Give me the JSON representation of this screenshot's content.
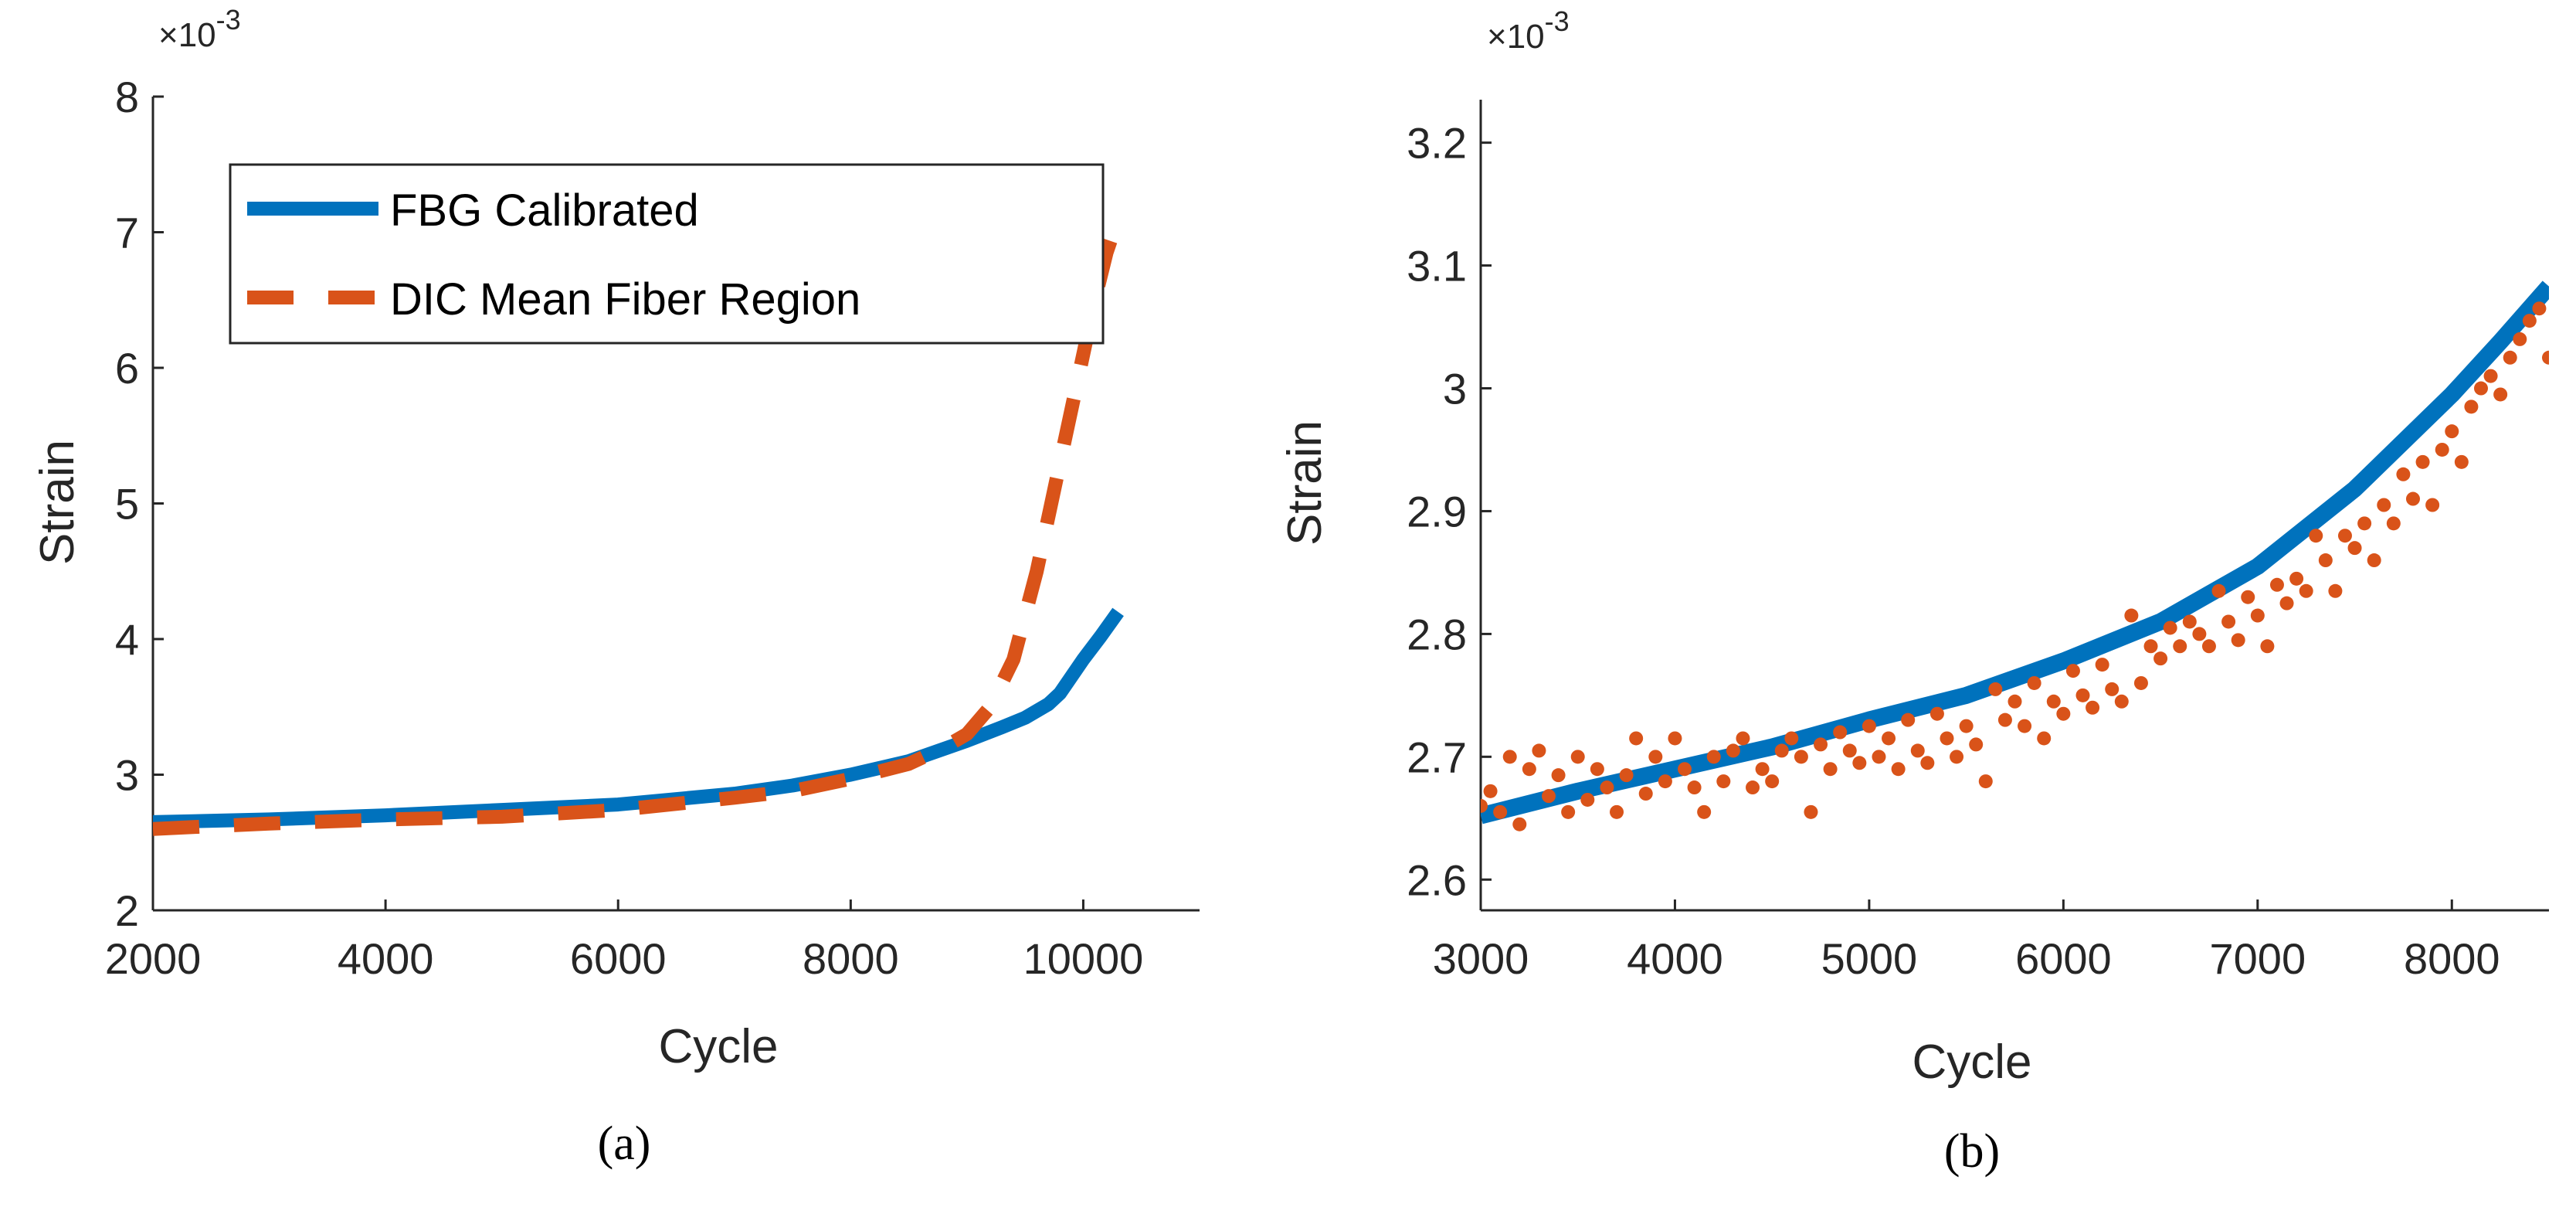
{
  "chart_data": [
    {
      "type": "line",
      "caption": "(a)",
      "xlabel": "Cycle",
      "ylabel": "Strain",
      "y_multiplier": "×10",
      "y_exponent": "-3",
      "xlim": [
        2000,
        11000
      ],
      "ylim": [
        2,
        8
      ],
      "xticks": [
        2000,
        4000,
        6000,
        8000,
        10000
      ],
      "yticks": [
        2,
        3,
        4,
        5,
        6,
        7,
        8
      ],
      "xtick_labels": [
        "2000",
        "4000",
        "6000",
        "8000",
        "10000"
      ],
      "ytick_labels": [
        "2",
        "3",
        "4",
        "5",
        "6",
        "7",
        "8"
      ],
      "legend": {
        "placement": "top-left",
        "entries": [
          "FBG Calibrated",
          "DIC Mean Fiber Region"
        ]
      },
      "series": [
        {
          "name": "FBG Calibrated",
          "style": "solid",
          "color": "#0072BD",
          "x": [
            2000,
            3000,
            4000,
            5000,
            6000,
            7000,
            7500,
            8000,
            8500,
            9000,
            9300,
            9500,
            9700,
            9800,
            10000,
            10150,
            10300
          ],
          "y": [
            2.65,
            2.67,
            2.7,
            2.74,
            2.78,
            2.86,
            2.92,
            3.0,
            3.1,
            3.25,
            3.35,
            3.42,
            3.52,
            3.6,
            3.85,
            4.02,
            4.2
          ]
        },
        {
          "name": "DIC Mean Fiber Region",
          "style": "dashed",
          "color": "#D95319",
          "x": [
            2000,
            3000,
            4000,
            5000,
            6000,
            7000,
            7500,
            8000,
            8500,
            8800,
            9000,
            9200,
            9400,
            9600,
            9800,
            9950,
            10100,
            10200,
            10300
          ],
          "y": [
            2.6,
            2.64,
            2.67,
            2.69,
            2.74,
            2.83,
            2.88,
            2.97,
            3.08,
            3.2,
            3.3,
            3.5,
            3.85,
            4.5,
            5.3,
            5.9,
            6.5,
            6.85,
            7.1
          ]
        }
      ]
    },
    {
      "type": "scatter",
      "caption": "(b)",
      "xlabel": "Cycle",
      "ylabel": "Strain",
      "y_multiplier": "×10",
      "y_exponent": "-3",
      "xlim": [
        3000,
        8500
      ],
      "ylim": [
        2.575,
        3.235
      ],
      "xticks": [
        3000,
        4000,
        5000,
        6000,
        7000,
        8000
      ],
      "yticks": [
        2.6,
        2.7,
        2.8,
        2.9,
        3.0,
        3.1,
        3.2
      ],
      "xtick_labels": [
        "3000",
        "4000",
        "5000",
        "6000",
        "7000",
        "8000"
      ],
      "ytick_labels": [
        "2.6",
        "2.7",
        "2.8",
        "2.9",
        "3",
        "3.1",
        "3.2"
      ],
      "series": [
        {
          "name": "FBG Calibrated",
          "style": "solid",
          "color": "#0072BD",
          "x": [
            3000,
            3500,
            4000,
            4500,
            5000,
            5500,
            6000,
            6500,
            7000,
            7500,
            8000,
            8250,
            8500
          ],
          "y": [
            2.652,
            2.672,
            2.69,
            2.708,
            2.73,
            2.75,
            2.778,
            2.81,
            2.855,
            2.918,
            2.995,
            3.038,
            3.083
          ]
        },
        {
          "name": "DIC Mean Fiber Region",
          "style": "markers",
          "color": "#D95319",
          "x": [
            3000,
            3050,
            3100,
            3150,
            3200,
            3250,
            3300,
            3350,
            3400,
            3450,
            3500,
            3550,
            3600,
            3650,
            3700,
            3750,
            3800,
            3850,
            3900,
            3950,
            4000,
            4050,
            4100,
            4150,
            4200,
            4250,
            4300,
            4350,
            4400,
            4450,
            4500,
            4550,
            4600,
            4650,
            4700,
            4750,
            4800,
            4850,
            4900,
            4950,
            5000,
            5050,
            5100,
            5150,
            5200,
            5250,
            5300,
            5350,
            5400,
            5450,
            5500,
            5550,
            5600,
            5650,
            5700,
            5750,
            5800,
            5850,
            5900,
            5950,
            6000,
            6050,
            6100,
            6150,
            6200,
            6250,
            6300,
            6350,
            6400,
            6450,
            6500,
            6550,
            6600,
            6650,
            6700,
            6750,
            6800,
            6850,
            6900,
            6950,
            7000,
            7050,
            7100,
            7150,
            7200,
            7250,
            7300,
            7350,
            7400,
            7450,
            7500,
            7550,
            7600,
            7650,
            7700,
            7750,
            7800,
            7850,
            7900,
            7950,
            8000,
            8050,
            8100,
            8150,
            8200,
            8250,
            8300,
            8350,
            8400,
            8450,
            8500
          ],
          "y": [
            2.66,
            2.672,
            2.655,
            2.7,
            2.645,
            2.69,
            2.705,
            2.668,
            2.685,
            2.655,
            2.7,
            2.665,
            2.69,
            2.675,
            2.655,
            2.685,
            2.715,
            2.67,
            2.7,
            2.68,
            2.715,
            2.69,
            2.675,
            2.655,
            2.7,
            2.68,
            2.705,
            2.715,
            2.675,
            2.69,
            2.68,
            2.705,
            2.715,
            2.7,
            2.655,
            2.71,
            2.69,
            2.72,
            2.705,
            2.695,
            2.725,
            2.7,
            2.715,
            2.69,
            2.73,
            2.705,
            2.695,
            2.735,
            2.715,
            2.7,
            2.725,
            2.71,
            2.68,
            2.755,
            2.73,
            2.745,
            2.725,
            2.76,
            2.715,
            2.745,
            2.735,
            2.77,
            2.75,
            2.74,
            2.775,
            2.755,
            2.745,
            2.815,
            2.76,
            2.79,
            2.78,
            2.805,
            2.79,
            2.81,
            2.8,
            2.79,
            2.835,
            2.81,
            2.795,
            2.83,
            2.815,
            2.79,
            2.84,
            2.825,
            2.845,
            2.835,
            2.88,
            2.86,
            2.835,
            2.88,
            2.87,
            2.89,
            2.86,
            2.905,
            2.89,
            2.93,
            2.91,
            2.94,
            2.905,
            2.95,
            2.965,
            2.94,
            2.985,
            3.0,
            3.01,
            2.995,
            3.025,
            3.04,
            3.055,
            3.065,
            3.025
          ]
        }
      ]
    }
  ]
}
